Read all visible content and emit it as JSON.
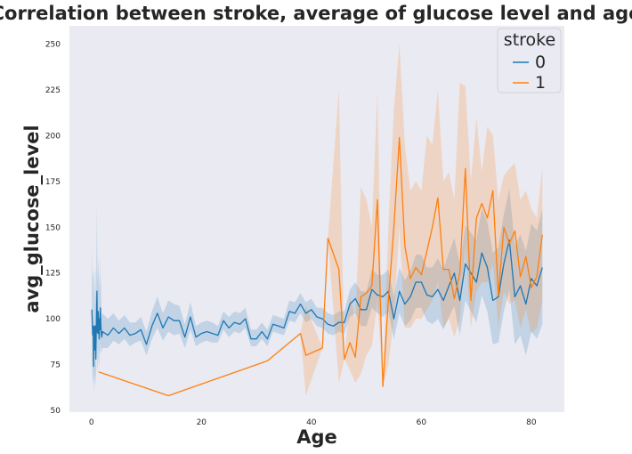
{
  "chart_data": {
    "type": "line",
    "title": "Correlation between stroke, average of glucose level and age",
    "xlabel": "Age",
    "ylabel": "avg_glucose_level",
    "xlim": [
      -4,
      86
    ],
    "ylim": [
      49,
      260
    ],
    "x_ticks": [
      0,
      20,
      40,
      60,
      80
    ],
    "y_ticks": [
      50,
      75,
      100,
      125,
      150,
      175,
      200,
      225,
      250
    ],
    "grid": false,
    "legend": {
      "title": "stroke",
      "placement": "top-right"
    },
    "series": [
      {
        "name": "0",
        "color": "#1f77b4",
        "x": [
          0.08,
          0.16,
          0.24,
          0.32,
          0.4,
          0.48,
          0.56,
          0.64,
          0.72,
          0.8,
          0.88,
          1,
          1.08,
          1.16,
          1.24,
          1.32,
          1.4,
          1.48,
          1.56,
          1.64,
          1.72,
          1.8,
          1.88,
          2,
          3,
          4,
          5,
          6,
          7,
          8,
          9,
          10,
          11,
          12,
          13,
          14,
          15,
          16,
          17,
          18,
          19,
          20,
          21,
          22,
          23,
          24,
          25,
          26,
          27,
          28,
          29,
          30,
          31,
          32,
          33,
          34,
          35,
          36,
          37,
          38,
          39,
          40,
          41,
          42,
          43,
          44,
          45,
          46,
          47,
          48,
          49,
          50,
          51,
          52,
          53,
          54,
          55,
          56,
          57,
          58,
          59,
          60,
          61,
          62,
          63,
          64,
          65,
          66,
          67,
          68,
          69,
          70,
          71,
          72,
          73,
          74,
          75,
          76,
          77,
          78,
          79,
          80,
          81,
          82
        ],
        "y": [
          105,
          97,
          91,
          96,
          74,
          94,
          96,
          83,
          96,
          78,
          93,
          115,
          93,
          92,
          104,
          97,
          89,
          100,
          94,
          106,
          97,
          92,
          90,
          93,
          91,
          95,
          92,
          95,
          91,
          92,
          94,
          86,
          96,
          103,
          95,
          101,
          99,
          99,
          90,
          101,
          90,
          92,
          93,
          92,
          91,
          99,
          95,
          98,
          97,
          100,
          89,
          89,
          93,
          89,
          97,
          96,
          95,
          104,
          103,
          108,
          103,
          105,
          101,
          100,
          97,
          96,
          98,
          98,
          108,
          111,
          105,
          105,
          116,
          113,
          112,
          115,
          100,
          115,
          108,
          112,
          120,
          120,
          113,
          112,
          116,
          110,
          118,
          125,
          110,
          130,
          125,
          120,
          136,
          128,
          110,
          112,
          130,
          143,
          112,
          118,
          108,
          122,
          118,
          128
        ],
        "ci_lower": [
          75,
          73,
          64,
          70,
          60,
          66,
          70,
          63,
          72,
          62,
          72,
          92,
          70,
          73,
          84,
          76,
          73,
          83,
          80,
          87,
          84,
          82,
          82,
          84,
          84,
          88,
          86,
          89,
          85,
          87,
          88,
          80,
          89,
          95,
          88,
          93,
          91,
          92,
          84,
          94,
          85,
          87,
          88,
          87,
          87,
          94,
          90,
          93,
          92,
          95,
          85,
          85,
          89,
          85,
          93,
          92,
          91,
          99,
          98,
          103,
          98,
          100,
          96,
          95,
          92,
          91,
          93,
          92,
          101,
          103,
          96,
          96,
          106,
          103,
          101,
          104,
          89,
          103,
          96,
          99,
          106,
          106,
          99,
          97,
          100,
          94,
          101,
          107,
          91,
          110,
          104,
          98,
          113,
          104,
          86,
          87,
          104,
          116,
          86,
          91,
          80,
          93,
          89,
          97
        ],
        "ci_upper": [
          140,
          126,
          122,
          126,
          100,
          124,
          128,
          112,
          128,
          108,
          120,
          162,
          128,
          120,
          134,
          126,
          114,
          124,
          118,
          134,
          118,
          106,
          100,
          103,
          100,
          103,
          99,
          102,
          98,
          98,
          101,
          93,
          104,
          112,
          103,
          110,
          108,
          107,
          97,
          109,
          96,
          98,
          99,
          98,
          96,
          104,
          101,
          104,
          103,
          106,
          94,
          94,
          98,
          94,
          102,
          101,
          100,
          110,
          109,
          114,
          109,
          111,
          106,
          106,
          103,
          102,
          104,
          104,
          116,
          120,
          115,
          115,
          127,
          124,
          124,
          127,
          112,
          128,
          121,
          126,
          135,
          135,
          128,
          128,
          133,
          127,
          136,
          144,
          130,
          151,
          147,
          143,
          160,
          153,
          136,
          139,
          157,
          171,
          140,
          146,
          137,
          152,
          148,
          160
        ]
      },
      {
        "name": "1",
        "color": "#ff7f0e",
        "x": [
          1.3,
          14,
          32,
          38,
          39,
          42,
          43,
          45,
          46,
          47,
          48,
          49,
          50,
          51,
          52,
          53,
          54,
          55,
          56,
          57,
          58,
          59,
          60,
          61,
          62,
          63,
          64,
          65,
          66,
          67,
          68,
          69,
          70,
          71,
          72,
          73,
          74,
          75,
          76,
          77,
          78,
          79,
          80,
          81,
          82
        ],
        "y": [
          71,
          58,
          77,
          92,
          80,
          84,
          144,
          127,
          78,
          87,
          79,
          112,
          114,
          118,
          165,
          63,
          110,
          150,
          199,
          140,
          122,
          128,
          124,
          137,
          150,
          166,
          127,
          127,
          111,
          125,
          182,
          110,
          155,
          163,
          155,
          170,
          113,
          150,
          141,
          148,
          123,
          134,
          117,
          123,
          146
        ],
        "ci_lower": [
          71,
          58,
          77,
          92,
          58,
          84,
          144,
          65,
          78,
          72,
          65,
          70,
          80,
          85,
          110,
          63,
          75,
          100,
          150,
          95,
          95,
          100,
          100,
          105,
          110,
          120,
          95,
          100,
          90,
          100,
          140,
          95,
          115,
          120,
          120,
          130,
          95,
          115,
          108,
          110,
          95,
          105,
          92,
          95,
          110
        ],
        "ci_upper": [
          71,
          58,
          77,
          92,
          107,
          84,
          144,
          225,
          78,
          112,
          100,
          172,
          165,
          150,
          224,
          63,
          150,
          215,
          250,
          195,
          170,
          175,
          170,
          200,
          195,
          225,
          175,
          180,
          165,
          229,
          227,
          175,
          210,
          180,
          205,
          200,
          165,
          178,
          182,
          185,
          165,
          170,
          160,
          155,
          183
        ]
      }
    ]
  }
}
